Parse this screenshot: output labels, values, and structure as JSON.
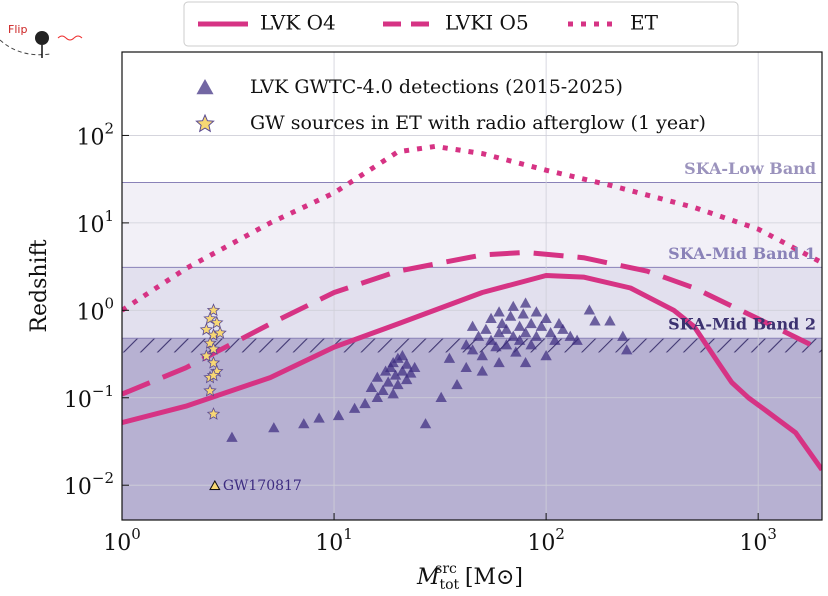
{
  "chart_data": {
    "type": "line",
    "ylabel": "Redshift",
    "xlabel": {
      "symbol": "M",
      "sub": "tot",
      "sup": "src",
      "unit": "[M⊙]"
    },
    "inset_label": "Flip",
    "xlim": [
      1,
      2000
    ],
    "ylim": [
      0.004,
      900
    ],
    "log_x": true,
    "log_y": true,
    "grid": true,
    "xticks": [
      {
        "value": 1,
        "label": "10^0"
      },
      {
        "value": 10,
        "label": "10^1"
      },
      {
        "value": 100,
        "label": "10^2"
      },
      {
        "value": 1000,
        "label": "10^3"
      }
    ],
    "yticks": [
      {
        "value": 0.01,
        "label": "10^−2"
      },
      {
        "value": 0.1,
        "label": "10^−1"
      },
      {
        "value": 1,
        "label": "10^0"
      },
      {
        "value": 10,
        "label": "10^1"
      },
      {
        "value": 100,
        "label": "10^2"
      }
    ],
    "bands": [
      {
        "name": "SKA-Low Band",
        "range": [
          0.004,
          29
        ],
        "color": "#ece9f3",
        "label_color": "#9b93bd"
      },
      {
        "name": "SKA-Mid Band 1",
        "range": [
          0.004,
          3.1
        ],
        "color": "#dcd8ea",
        "label_color": "#8a82b8"
      },
      {
        "name": "SKA-Mid Band 2",
        "range": [
          0.004,
          0.48
        ],
        "hatch_range": [
          0.33,
          0.48
        ],
        "color": "#a59cc6",
        "label_color": "#3c3270"
      }
    ],
    "series": [
      {
        "name": "LVK O4",
        "type": "line",
        "style": "solid",
        "color": "#d63384",
        "x": [
          1,
          2,
          5,
          10,
          20,
          50,
          100,
          150,
          250,
          400,
          500,
          650,
          750,
          900,
          1100,
          1500,
          2000
        ],
        "values": [
          0.052,
          0.08,
          0.17,
          0.38,
          0.7,
          1.6,
          2.5,
          2.4,
          1.8,
          1.0,
          0.65,
          0.25,
          0.15,
          0.1,
          0.07,
          0.04,
          0.015
        ]
      },
      {
        "name": "LVKI O5",
        "type": "line",
        "style": "dashed",
        "color": "#d63384",
        "x": [
          1,
          2,
          5,
          10,
          20,
          50,
          80,
          150,
          300,
          500,
          1000,
          2000
        ],
        "values": [
          0.11,
          0.22,
          0.7,
          1.6,
          2.8,
          4.3,
          4.6,
          4.0,
          2.8,
          1.8,
          0.8,
          0.35
        ]
      },
      {
        "name": "ET",
        "type": "line",
        "style": "dotted",
        "color": "#d63384",
        "x": [
          1,
          2,
          5,
          10,
          20,
          30,
          50,
          100,
          200,
          500,
          1000,
          2000
        ],
        "values": [
          1.0,
          3,
          10,
          22,
          65,
          75,
          62,
          40,
          27,
          15,
          8.5,
          3.5
        ]
      },
      {
        "name": "LVK GWTC-4.0 detections (2015-2025)",
        "type": "scatter",
        "marker": "triangle",
        "color": "#3d2c80",
        "x": [
          3.3,
          5.2,
          7.2,
          8.5,
          10.5,
          12.5,
          14,
          27,
          32,
          38,
          42,
          35,
          15,
          16,
          17,
          17.5,
          18,
          18.5,
          19,
          19.5,
          20,
          20,
          21,
          21,
          22,
          22,
          23,
          24,
          19,
          16,
          45,
          48,
          50,
          52,
          55,
          55,
          58,
          60,
          60,
          62,
          65,
          65,
          68,
          70,
          70,
          72,
          75,
          75,
          78,
          80,
          80,
          85,
          85,
          90,
          90,
          95,
          100,
          100,
          105,
          110,
          115,
          120,
          130,
          140,
          160,
          170,
          200,
          230,
          240,
          80,
          60,
          50,
          45,
          42,
          2.74
        ],
        "values": [
          0.035,
          0.045,
          0.05,
          0.058,
          0.062,
          0.075,
          0.085,
          0.05,
          0.1,
          0.14,
          0.22,
          0.28,
          0.13,
          0.17,
          0.12,
          0.2,
          0.15,
          0.22,
          0.25,
          0.18,
          0.28,
          0.14,
          0.2,
          0.3,
          0.16,
          0.24,
          0.19,
          0.22,
          0.11,
          0.1,
          0.35,
          0.5,
          0.3,
          0.6,
          0.45,
          0.8,
          0.38,
          0.55,
          0.95,
          0.7,
          0.4,
          0.6,
          0.85,
          0.5,
          1.1,
          0.33,
          0.65,
          0.45,
          0.9,
          0.55,
          1.2,
          0.7,
          0.4,
          0.5,
          0.95,
          0.65,
          0.8,
          0.3,
          0.55,
          0.45,
          0.7,
          0.6,
          0.5,
          0.45,
          1.0,
          0.75,
          0.75,
          0.5,
          0.35,
          0.25,
          0.25,
          0.2,
          0.65,
          0.4,
          0.0098
        ]
      },
      {
        "name": "GW sources in ET with radio afterglow (1 year)",
        "type": "scatter",
        "marker": "star",
        "color": "#f7d774",
        "x": [
          2.7,
          2.6,
          2.8,
          2.5,
          2.7,
          2.9,
          2.6,
          2.7,
          2.5,
          2.7,
          2.8,
          2.6,
          2.7,
          2.6,
          2.7
        ],
        "values": [
          1.0,
          0.8,
          0.72,
          0.6,
          0.52,
          0.55,
          0.42,
          0.36,
          0.3,
          0.25,
          0.2,
          0.17,
          0.18,
          0.12,
          0.065
        ]
      }
    ],
    "annotations": [
      {
        "text": "GW170817",
        "x": 2.74,
        "y": 0.0098
      }
    ]
  }
}
